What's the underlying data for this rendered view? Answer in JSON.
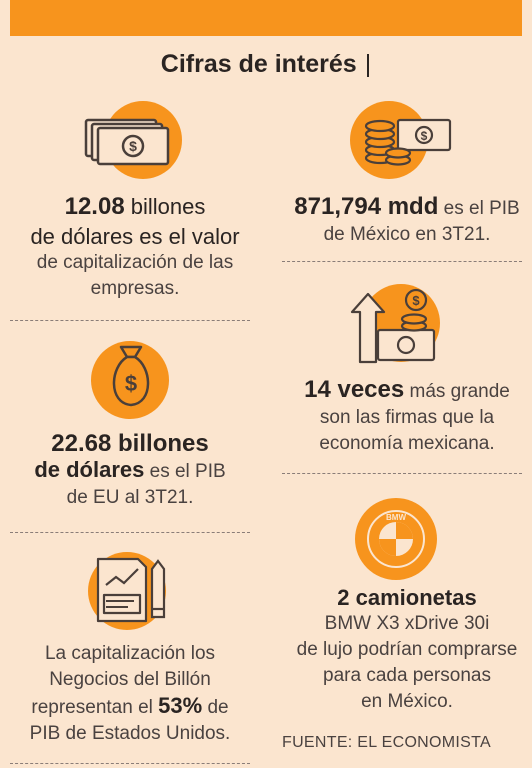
{
  "header": {
    "title": "Cifras de interés",
    "separator": "|"
  },
  "left": {
    "block1": {
      "icon": "banknote-stack-icon",
      "line1_bold": "12.08",
      "line1_rest": " billones",
      "line2": "de dólares es el valor",
      "line3": "de capitalización de las",
      "line4": "empresas."
    },
    "block2": {
      "icon": "money-bag-icon",
      "line1": "22.68 billones",
      "line2_bold": "de dólares",
      "line2_rest": " es el PIB",
      "line3": "de EU al 3T21."
    },
    "block3": {
      "icon": "financial-report-icon",
      "line1": "La capitalización los",
      "line2": "Negocios del Billón",
      "line3_pre": "representan el ",
      "line3_bold": "53%",
      "line3_post": " de",
      "line4": "PIB de Estados Unidos."
    }
  },
  "right": {
    "block1": {
      "icon": "coins-and-bill-icon",
      "line1_bold": "871,794 mdd",
      "line1_rest": " es el PIB",
      "line2": "de México en 3T21."
    },
    "block2": {
      "icon": "growth-arrow-cash-icon",
      "line1_bold": "14 veces",
      "line1_rest": " más grande",
      "line2": "son las firmas que la",
      "line3": "economía mexicana."
    },
    "block3": {
      "icon": "bmw-logo-icon",
      "logo_text": "BMW",
      "line1": "2 camionetas",
      "line2": "BMW X3 xDrive 30i",
      "line3": "de lujo podrían comprarse",
      "line4": "para cada personas",
      "line5": "en México."
    }
  },
  "source": "FUENTE: EL ECONOMISTA",
  "colors": {
    "background": "#fbe5cf",
    "accent": "#f7941d",
    "text": "#3a3330"
  }
}
